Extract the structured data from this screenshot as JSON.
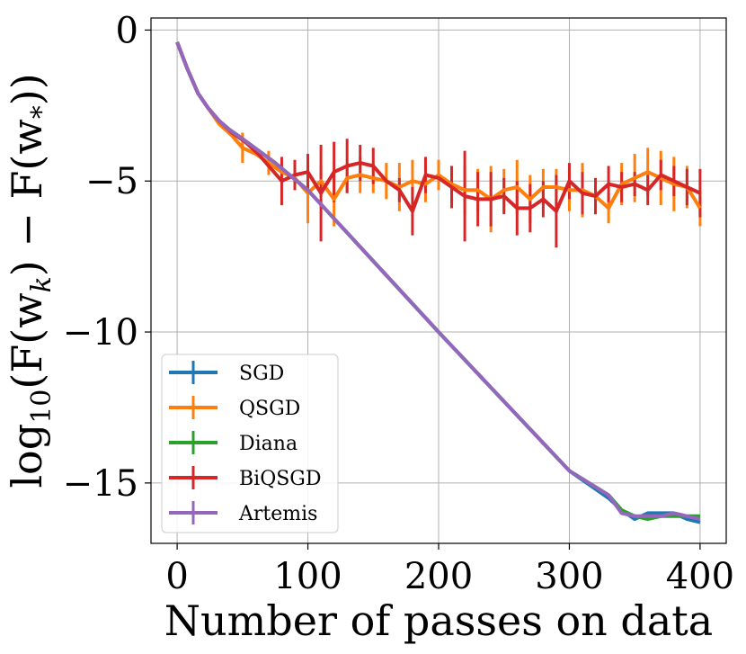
{
  "chart_data": {
    "type": "line",
    "title": "",
    "xlabel": "Number of passes on data",
    "ylabel": "log10(F(w_k) − F(w_*))",
    "ylabel_parts": {
      "prefix": "log",
      "sub1": "10",
      "mid": "(F(w",
      "sub2": "k",
      "mid2": ") − F(w",
      "sub3": "*",
      "suffix": "))"
    },
    "xlim": [
      -20,
      420
    ],
    "ylim": [
      -17,
      0.4
    ],
    "x_ticks": [
      0,
      100,
      200,
      300,
      400
    ],
    "x_tick_labels": [
      "0",
      "100",
      "200",
      "300",
      "400"
    ],
    "y_ticks": [
      0,
      -5,
      -10,
      -15
    ],
    "y_tick_labels": [
      "0",
      "−5",
      "−10",
      "−15"
    ],
    "grid": true,
    "legend_position": "lower-left",
    "series": [
      {
        "name": "SGD",
        "color": "#1f77b4",
        "points": [
          [
            0,
            -0.4
          ],
          [
            8,
            -1.3
          ],
          [
            16,
            -2.1
          ],
          [
            24,
            -2.6
          ],
          [
            32,
            -3.0
          ],
          [
            40,
            -3.3
          ],
          [
            50,
            -3.6
          ],
          [
            75,
            -4.4
          ],
          [
            100,
            -5.3
          ],
          [
            200,
            -10.0
          ],
          [
            300,
            -14.6
          ],
          [
            330,
            -15.5
          ],
          [
            340,
            -15.9
          ],
          [
            350,
            -16.2
          ],
          [
            360,
            -16.0
          ],
          [
            370,
            -16.0
          ],
          [
            380,
            -16.0
          ],
          [
            390,
            -16.2
          ],
          [
            400,
            -16.3
          ]
        ]
      },
      {
        "name": "QSGD",
        "color": "#ff7f0e",
        "points": [
          [
            0,
            -0.4
          ],
          [
            8,
            -1.3
          ],
          [
            16,
            -2.1
          ],
          [
            24,
            -2.6
          ],
          [
            32,
            -3.1
          ],
          [
            42,
            -3.5
          ],
          [
            50,
            -3.9
          ],
          [
            60,
            -4.1
          ],
          [
            70,
            -4.4
          ],
          [
            80,
            -4.7
          ],
          [
            90,
            -4.9
          ],
          [
            100,
            -5.4
          ],
          [
            110,
            -5.0
          ],
          [
            120,
            -5.6
          ],
          [
            130,
            -4.9
          ],
          [
            140,
            -4.8
          ],
          [
            150,
            -4.9
          ],
          [
            160,
            -5.0
          ],
          [
            170,
            -5.2
          ],
          [
            180,
            -5.0
          ],
          [
            190,
            -5.1
          ],
          [
            200,
            -4.8
          ],
          [
            210,
            -5.1
          ],
          [
            220,
            -5.3
          ],
          [
            230,
            -5.3
          ],
          [
            240,
            -5.6
          ],
          [
            250,
            -5.3
          ],
          [
            260,
            -5.2
          ],
          [
            270,
            -5.6
          ],
          [
            280,
            -5.2
          ],
          [
            290,
            -5.2
          ],
          [
            300,
            -5.3
          ],
          [
            310,
            -5.3
          ],
          [
            320,
            -5.5
          ],
          [
            330,
            -5.9
          ],
          [
            340,
            -5.1
          ],
          [
            350,
            -4.9
          ],
          [
            360,
            -4.7
          ],
          [
            370,
            -4.9
          ],
          [
            380,
            -5.1
          ],
          [
            390,
            -5.2
          ],
          [
            400,
            -5.9
          ]
        ]
      },
      {
        "name": "Diana",
        "color": "#2ca02c",
        "points": [
          [
            0,
            -0.4
          ],
          [
            8,
            -1.3
          ],
          [
            16,
            -2.1
          ],
          [
            24,
            -2.6
          ],
          [
            32,
            -3.0
          ],
          [
            40,
            -3.3
          ],
          [
            50,
            -3.6
          ],
          [
            75,
            -4.4
          ],
          [
            100,
            -5.3
          ],
          [
            200,
            -10.0
          ],
          [
            300,
            -14.6
          ],
          [
            330,
            -15.4
          ],
          [
            340,
            -15.9
          ],
          [
            350,
            -16.1
          ],
          [
            360,
            -16.2
          ],
          [
            370,
            -16.1
          ],
          [
            380,
            -16.1
          ],
          [
            390,
            -16.1
          ],
          [
            400,
            -16.1
          ]
        ]
      },
      {
        "name": "BiQSGD",
        "color": "#d62728",
        "points": [
          [
            0,
            -0.4
          ],
          [
            8,
            -1.3
          ],
          [
            16,
            -2.1
          ],
          [
            24,
            -2.6
          ],
          [
            32,
            -3.0
          ],
          [
            42,
            -3.4
          ],
          [
            52,
            -3.7
          ],
          [
            62,
            -4.1
          ],
          [
            70,
            -4.5
          ],
          [
            80,
            -5.0
          ],
          [
            90,
            -4.8
          ],
          [
            100,
            -4.7
          ],
          [
            110,
            -5.4
          ],
          [
            120,
            -4.7
          ],
          [
            130,
            -4.5
          ],
          [
            140,
            -4.4
          ],
          [
            150,
            -4.5
          ],
          [
            160,
            -5.0
          ],
          [
            170,
            -5.3
          ],
          [
            180,
            -6.0
          ],
          [
            190,
            -4.8
          ],
          [
            200,
            -4.9
          ],
          [
            210,
            -5.2
          ],
          [
            220,
            -5.5
          ],
          [
            230,
            -5.6
          ],
          [
            240,
            -5.6
          ],
          [
            250,
            -5.5
          ],
          [
            260,
            -5.9
          ],
          [
            270,
            -5.9
          ],
          [
            280,
            -5.6
          ],
          [
            290,
            -6.0
          ],
          [
            300,
            -5.0
          ],
          [
            310,
            -5.4
          ],
          [
            320,
            -5.5
          ],
          [
            330,
            -5.1
          ],
          [
            340,
            -5.2
          ],
          [
            350,
            -5.1
          ],
          [
            360,
            -5.3
          ],
          [
            370,
            -4.8
          ],
          [
            380,
            -5.0
          ],
          [
            390,
            -5.2
          ],
          [
            400,
            -5.4
          ]
        ]
      },
      {
        "name": "Artemis",
        "color": "#9467bd",
        "points": [
          [
            0,
            -0.4
          ],
          [
            8,
            -1.3
          ],
          [
            16,
            -2.1
          ],
          [
            24,
            -2.6
          ],
          [
            32,
            -3.0
          ],
          [
            40,
            -3.3
          ],
          [
            50,
            -3.6
          ],
          [
            75,
            -4.4
          ],
          [
            100,
            -5.3
          ],
          [
            200,
            -10.0
          ],
          [
            300,
            -14.6
          ],
          [
            330,
            -15.4
          ],
          [
            340,
            -16.0
          ],
          [
            350,
            -16.1
          ],
          [
            360,
            -16.1
          ],
          [
            370,
            -16.1
          ],
          [
            380,
            -16.0
          ],
          [
            390,
            -16.1
          ],
          [
            400,
            -16.2
          ]
        ]
      }
    ],
    "error_bars": {
      "QSGD": [
        [
          50,
          0.5
        ],
        [
          70,
          0.4
        ],
        [
          90,
          0.4
        ],
        [
          100,
          1.0
        ],
        [
          110,
          0.5
        ],
        [
          120,
          0.9
        ],
        [
          130,
          0.5
        ],
        [
          140,
          0.6
        ],
        [
          150,
          0.5
        ],
        [
          160,
          0.6
        ],
        [
          170,
          0.8
        ],
        [
          180,
          0.7
        ],
        [
          190,
          0.6
        ],
        [
          200,
          0.5
        ],
        [
          210,
          0.6
        ],
        [
          220,
          0.8
        ],
        [
          230,
          0.7
        ],
        [
          240,
          1.1
        ],
        [
          250,
          0.7
        ],
        [
          260,
          0.9
        ],
        [
          270,
          0.8
        ],
        [
          280,
          0.6
        ],
        [
          290,
          0.6
        ],
        [
          300,
          0.7
        ],
        [
          310,
          0.9
        ],
        [
          320,
          0.6
        ],
        [
          330,
          0.5
        ],
        [
          340,
          0.7
        ],
        [
          350,
          0.8
        ],
        [
          360,
          0.8
        ],
        [
          370,
          0.9
        ],
        [
          380,
          0.9
        ],
        [
          390,
          0.7
        ],
        [
          400,
          0.6
        ]
      ],
      "BiQSGD": [
        [
          60,
          0.7
        ],
        [
          80,
          0.8
        ],
        [
          90,
          0.5
        ],
        [
          100,
          0.6
        ],
        [
          110,
          1.6
        ],
        [
          120,
          1.0
        ],
        [
          130,
          0.9
        ],
        [
          140,
          0.6
        ],
        [
          150,
          0.6
        ],
        [
          170,
          0.4
        ],
        [
          180,
          0.8
        ],
        [
          190,
          0.6
        ],
        [
          210,
          0.7
        ],
        [
          220,
          1.5
        ],
        [
          230,
          0.9
        ],
        [
          240,
          0.9
        ],
        [
          250,
          0.6
        ],
        [
          260,
          0.9
        ],
        [
          270,
          0.8
        ],
        [
          280,
          0.6
        ],
        [
          290,
          1.2
        ],
        [
          300,
          0.6
        ],
        [
          310,
          0.7
        ],
        [
          320,
          0.6
        ],
        [
          330,
          0.6
        ],
        [
          340,
          0.5
        ],
        [
          350,
          0.4
        ],
        [
          360,
          0.5
        ],
        [
          370,
          0.5
        ],
        [
          380,
          0.5
        ],
        [
          390,
          0.6
        ],
        [
          400,
          0.8
        ]
      ]
    }
  }
}
